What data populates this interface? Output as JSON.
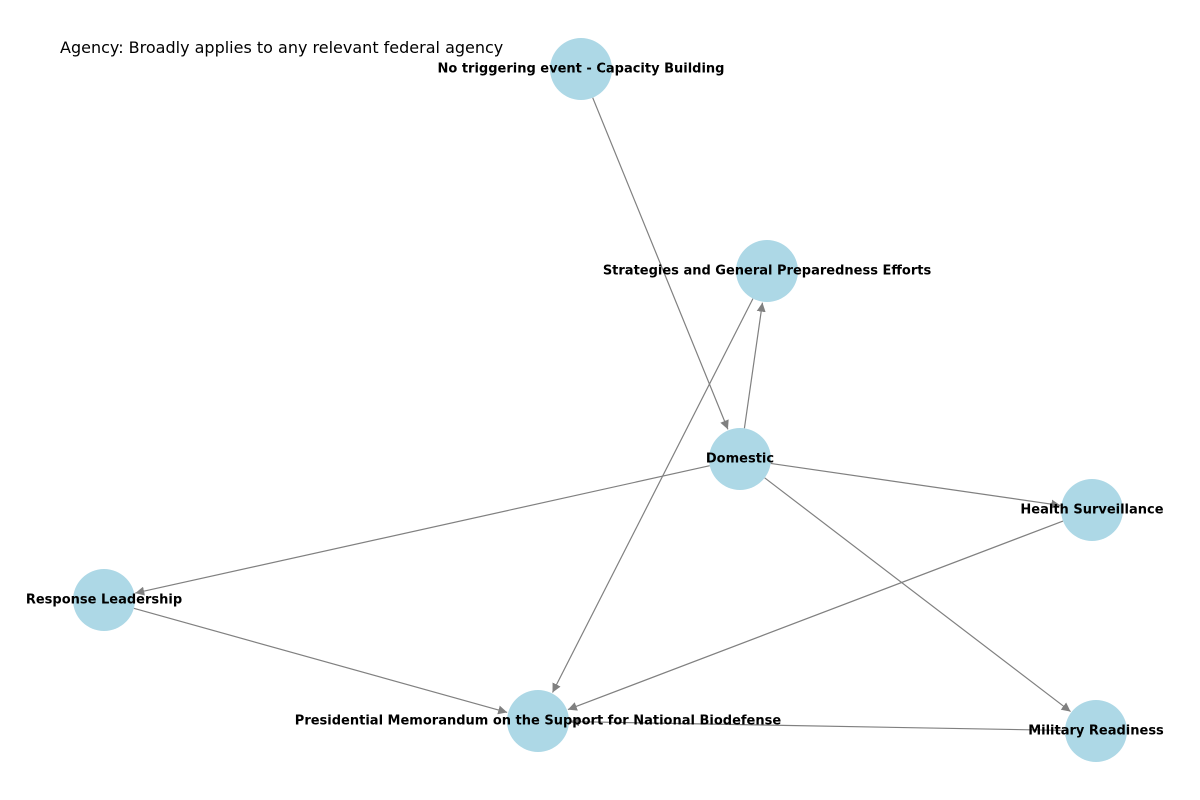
{
  "annotation": "Agency: Broadly applies to any relevant federal agency",
  "colors": {
    "node_fill": "#add8e6",
    "edge": "#808080",
    "label": "#000000"
  },
  "nodes": [
    {
      "id": "no-trigger",
      "label": "No triggering event - Capacity Building"
    },
    {
      "id": "strategies",
      "label": "Strategies and General Preparedness Efforts"
    },
    {
      "id": "domestic",
      "label": "Domestic"
    },
    {
      "id": "health-surveillance",
      "label": "Health Surveillance"
    },
    {
      "id": "response-leadership",
      "label": "Response Leadership"
    },
    {
      "id": "presidential-memo",
      "label": "Presidential Memorandum on the Support for National Biodefense"
    },
    {
      "id": "military-readiness",
      "label": "Military Readiness"
    }
  ],
  "edges": [
    {
      "from": "no-trigger",
      "to": "domestic"
    },
    {
      "from": "domestic",
      "to": "strategies"
    },
    {
      "from": "strategies",
      "to": "presidential-memo"
    },
    {
      "from": "domestic",
      "to": "health-surveillance"
    },
    {
      "from": "domestic",
      "to": "response-leadership"
    },
    {
      "from": "domestic",
      "to": "military-readiness"
    },
    {
      "from": "health-surveillance",
      "to": "presidential-memo"
    },
    {
      "from": "response-leadership",
      "to": "presidential-memo"
    },
    {
      "from": "military-readiness",
      "to": "presidential-memo"
    }
  ]
}
